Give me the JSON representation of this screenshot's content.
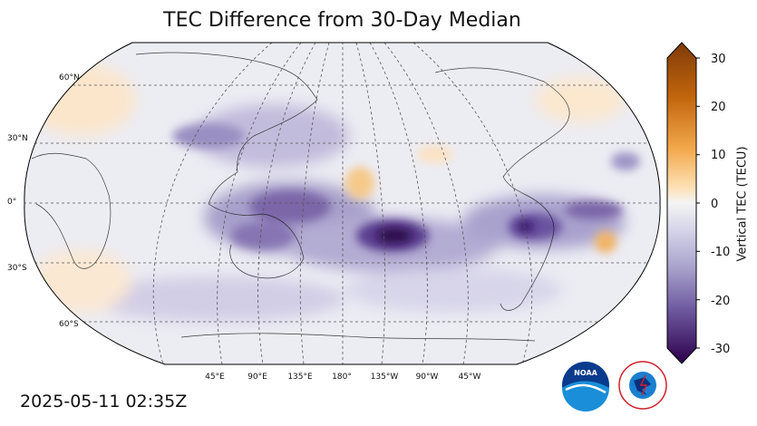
{
  "title": "TEC Difference from 30-Day Median",
  "timestamp": "2025-05-11 02:35Z",
  "colorbar": {
    "label": "Vertical TEC (TECU)",
    "ticks": [
      "30",
      "20",
      "10",
      "0",
      "-10",
      "-20",
      "-30"
    ],
    "range": [
      -30,
      30
    ],
    "extend": "both"
  },
  "map": {
    "projection": "Robinson, Pacific-centered",
    "lat_labels": [
      "60°N",
      "30°N",
      "0°",
      "30°S",
      "60°S"
    ],
    "lon_labels": [
      "45°E",
      "90°E",
      "135°E",
      "180°",
      "135°W",
      "90°W",
      "45°W"
    ]
  },
  "logos": {
    "noaa": "NOAA",
    "nws": "NATIONAL WEATHER SERVICE"
  },
  "colors": {
    "negative_strong": "#2d0a4e",
    "negative_mid": "#7b66a8",
    "neutral": "#f2f2f6",
    "positive_mid": "#f5c98a",
    "positive_strong": "#7f3b08"
  }
}
